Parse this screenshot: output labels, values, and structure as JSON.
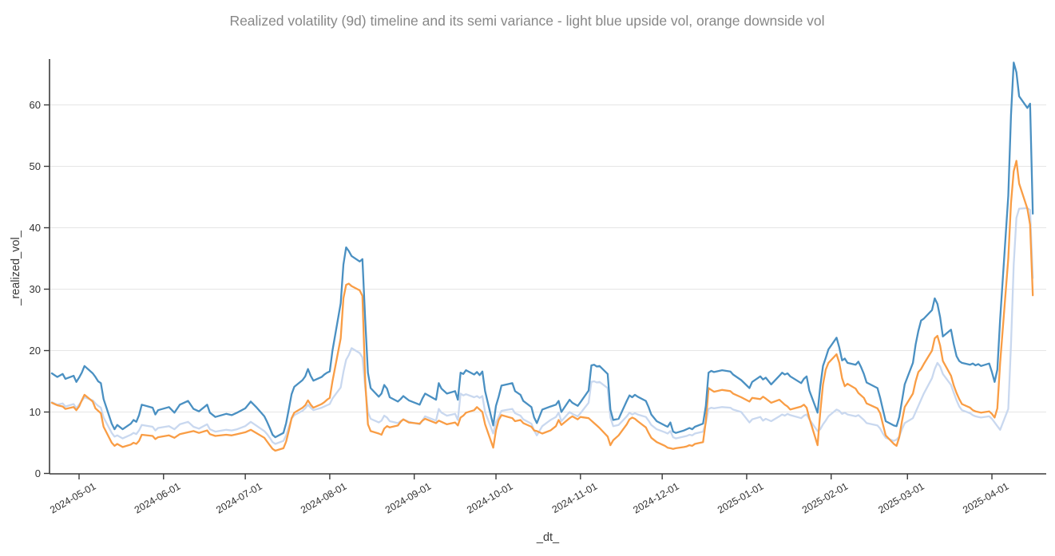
{
  "chart_data": {
    "type": "line",
    "title": "Realized volatility (9d) timeline and its semi variance - light blue upside vol, orange downside vol",
    "xlabel": "_dt_",
    "ylabel": "_realized_vol_",
    "grid": "horizontal-only",
    "legend_position": "none (described in title)",
    "ylim": [
      0,
      67.3
    ],
    "xlim": [
      "2024-04-20",
      "2025-04-21"
    ],
    "y_ticks": [
      0,
      10,
      20,
      30,
      40,
      50,
      60
    ],
    "x_ticks": [
      "2024-05-01",
      "2024-06-01",
      "2024-07-01",
      "2024-08-01",
      "2024-09-01",
      "2024-10-01",
      "2024-11-01",
      "2024-12-01",
      "2025-01-01",
      "2025-02-01",
      "2025-03-01",
      "2025-04-01"
    ],
    "colors": {
      "realized_vol": "#4a90c2",
      "upside_vol": "#c9d8ef",
      "downside_vol": "#f99d45",
      "grid": "#e5e5e5",
      "axis": "#3a3a3a",
      "title": "#878787"
    },
    "series": [
      {
        "name": "upside_vol",
        "label": "light blue upside vol",
        "color": "#c9d8ef",
        "col": 2
      },
      {
        "name": "downside_vol",
        "label": "orange downside vol",
        "color": "#f99d45",
        "col": 3
      },
      {
        "name": "realized_vol",
        "label": "realized vol (9d)",
        "color": "#4a90c2",
        "col": 1
      }
    ],
    "columns": [
      "date",
      "realized_vol",
      "upside_vol",
      "downside_vol"
    ],
    "rows": [
      [
        "2024-04-21",
        16.3,
        11.6,
        11.5
      ],
      [
        "2024-04-23",
        15.7,
        11.2,
        11.1
      ],
      [
        "2024-04-25",
        16.2,
        11.4,
        10.9
      ],
      [
        "2024-04-26",
        15.4,
        10.9,
        10.5
      ],
      [
        "2024-04-29",
        15.9,
        11.3,
        10.8
      ],
      [
        "2024-04-30",
        14.9,
        10.6,
        10.3
      ],
      [
        "2024-05-01",
        15.6,
        11.2,
        10.9
      ],
      [
        "2024-05-02",
        16.4,
        11.8,
        11.9
      ],
      [
        "2024-05-03",
        17.5,
        12.4,
        12.8
      ],
      [
        "2024-05-06",
        16.3,
        11.9,
        11.7
      ],
      [
        "2024-05-07",
        15.7,
        11.4,
        10.6
      ],
      [
        "2024-05-08",
        15.0,
        11.0,
        10.2
      ],
      [
        "2024-05-09",
        14.7,
        10.7,
        9.8
      ],
      [
        "2024-05-10",
        12.1,
        9.1,
        7.6
      ],
      [
        "2024-05-13",
        8.1,
        6.6,
        5.0
      ],
      [
        "2024-05-14",
        7.2,
        6.0,
        4.5
      ],
      [
        "2024-05-15",
        7.9,
        6.2,
        4.8
      ],
      [
        "2024-05-17",
        7.2,
        5.7,
        4.3
      ],
      [
        "2024-05-20",
        8.1,
        6.3,
        4.7
      ],
      [
        "2024-05-21",
        8.7,
        6.6,
        5.0
      ],
      [
        "2024-05-22",
        8.4,
        6.4,
        4.8
      ],
      [
        "2024-05-23",
        9.5,
        7.0,
        5.3
      ],
      [
        "2024-05-24",
        11.2,
        7.9,
        6.3
      ],
      [
        "2024-05-28",
        10.7,
        7.6,
        6.1
      ],
      [
        "2024-05-29",
        9.6,
        7.0,
        5.6
      ],
      [
        "2024-05-30",
        10.3,
        7.4,
        5.9
      ],
      [
        "2024-06-03",
        10.8,
        7.7,
        6.2
      ],
      [
        "2024-06-05",
        9.9,
        7.2,
        5.8
      ],
      [
        "2024-06-07",
        11.2,
        8.0,
        6.4
      ],
      [
        "2024-06-10",
        11.8,
        8.4,
        6.7
      ],
      [
        "2024-06-12",
        10.5,
        7.6,
        6.9
      ],
      [
        "2024-06-14",
        10.1,
        7.3,
        6.6
      ],
      [
        "2024-06-17",
        11.2,
        8.0,
        7.0
      ],
      [
        "2024-06-18",
        9.9,
        7.2,
        6.4
      ],
      [
        "2024-06-20",
        9.2,
        6.8,
        6.1
      ],
      [
        "2024-06-24",
        9.7,
        7.1,
        6.3
      ],
      [
        "2024-06-26",
        9.5,
        7.0,
        6.2
      ],
      [
        "2024-06-28",
        9.9,
        7.2,
        6.4
      ],
      [
        "2024-07-01",
        10.6,
        7.7,
        6.7
      ],
      [
        "2024-07-03",
        11.7,
        8.4,
        7.1
      ],
      [
        "2024-07-05",
        10.8,
        7.8,
        6.6
      ],
      [
        "2024-07-08",
        9.3,
        6.9,
        5.8
      ],
      [
        "2024-07-09",
        8.4,
        6.4,
        5.2
      ],
      [
        "2024-07-10",
        7.4,
        5.8,
        4.6
      ],
      [
        "2024-07-11",
        6.3,
        5.1,
        4.0
      ],
      [
        "2024-07-12",
        5.9,
        4.8,
        3.7
      ],
      [
        "2024-07-15",
        6.6,
        5.3,
        4.1
      ],
      [
        "2024-07-16",
        8.2,
        6.2,
        5.2
      ],
      [
        "2024-07-17",
        10.5,
        7.6,
        7.0
      ],
      [
        "2024-07-18",
        12.9,
        8.9,
        9.0
      ],
      [
        "2024-07-19",
        14.1,
        9.5,
        9.9
      ],
      [
        "2024-07-22",
        15.2,
        10.2,
        10.7
      ],
      [
        "2024-07-23",
        15.8,
        10.6,
        11.1
      ],
      [
        "2024-07-24",
        17.0,
        11.2,
        11.9
      ],
      [
        "2024-07-25",
        15.9,
        10.7,
        11.2
      ],
      [
        "2024-07-26",
        15.1,
        10.3,
        10.7
      ],
      [
        "2024-07-29",
        15.7,
        10.7,
        11.3
      ],
      [
        "2024-07-30",
        16.1,
        10.9,
        11.6
      ],
      [
        "2024-07-31",
        16.4,
        11.1,
        12.0
      ],
      [
        "2024-08-01",
        16.6,
        11.3,
        12.3
      ],
      [
        "2024-08-02",
        20.0,
        12.2,
        15.0
      ],
      [
        "2024-08-05",
        27.7,
        14.0,
        22.0
      ],
      [
        "2024-08-06",
        34.0,
        16.5,
        28.5
      ],
      [
        "2024-08-07",
        36.8,
        18.5,
        30.7
      ],
      [
        "2024-08-08",
        36.2,
        19.3,
        30.9
      ],
      [
        "2024-08-09",
        35.4,
        20.4,
        30.5
      ],
      [
        "2024-08-12",
        34.5,
        19.6,
        29.8
      ],
      [
        "2024-08-13",
        34.9,
        18.9,
        28.9
      ],
      [
        "2024-08-14",
        25.0,
        14.0,
        15.0
      ],
      [
        "2024-08-15",
        16.4,
        10.0,
        8.0
      ],
      [
        "2024-08-16",
        13.9,
        8.9,
        6.9
      ],
      [
        "2024-08-19",
        12.5,
        8.3,
        6.5
      ],
      [
        "2024-08-20",
        13.0,
        8.6,
        6.3
      ],
      [
        "2024-08-21",
        14.4,
        9.4,
        7.3
      ],
      [
        "2024-08-22",
        13.8,
        9.1,
        7.7
      ],
      [
        "2024-08-23",
        12.4,
        8.5,
        7.5
      ],
      [
        "2024-08-26",
        11.7,
        8.2,
        7.8
      ],
      [
        "2024-08-27",
        12.1,
        8.5,
        8.4
      ],
      [
        "2024-08-28",
        12.6,
        8.8,
        8.8
      ],
      [
        "2024-08-30",
        11.9,
        8.4,
        8.3
      ],
      [
        "2024-09-03",
        11.2,
        8.0,
        8.1
      ],
      [
        "2024-09-04",
        12.2,
        8.6,
        8.6
      ],
      [
        "2024-09-05",
        13.0,
        9.3,
        8.9
      ],
      [
        "2024-09-09",
        12.0,
        8.6,
        8.2
      ],
      [
        "2024-09-10",
        14.7,
        10.5,
        8.6
      ],
      [
        "2024-09-11",
        13.8,
        9.9,
        8.4
      ],
      [
        "2024-09-13",
        13.0,
        9.4,
        8.0
      ],
      [
        "2024-09-16",
        13.4,
        9.7,
        8.3
      ],
      [
        "2024-09-17",
        12.0,
        8.7,
        7.8
      ],
      [
        "2024-09-18",
        16.4,
        13.0,
        9.1
      ],
      [
        "2024-09-19",
        16.2,
        12.7,
        9.4
      ],
      [
        "2024-09-20",
        16.8,
        12.9,
        9.9
      ],
      [
        "2024-09-23",
        16.1,
        12.4,
        10.3
      ],
      [
        "2024-09-24",
        16.5,
        12.6,
        10.8
      ],
      [
        "2024-09-25",
        16.0,
        12.3,
        10.4
      ],
      [
        "2024-09-26",
        16.6,
        12.6,
        10.0
      ],
      [
        "2024-09-27",
        13.4,
        10.0,
        8.0
      ],
      [
        "2024-09-30",
        7.8,
        6.5,
        4.2
      ],
      [
        "2024-10-01",
        11.0,
        8.3,
        7.0
      ],
      [
        "2024-10-02",
        12.5,
        9.2,
        8.7
      ],
      [
        "2024-10-03",
        14.3,
        10.2,
        9.5
      ],
      [
        "2024-10-07",
        14.7,
        10.5,
        9.0
      ],
      [
        "2024-10-08",
        13.4,
        9.8,
        8.5
      ],
      [
        "2024-10-10",
        12.8,
        9.4,
        8.7
      ],
      [
        "2024-10-11",
        11.8,
        8.8,
        8.2
      ],
      [
        "2024-10-14",
        10.8,
        8.1,
        7.6
      ],
      [
        "2024-10-15",
        9.1,
        7.0,
        7.0
      ],
      [
        "2024-10-16",
        8.2,
        6.2,
        6.9
      ],
      [
        "2024-10-18",
        10.4,
        7.7,
        6.5
      ],
      [
        "2024-10-21",
        10.9,
        8.7,
        7.0
      ],
      [
        "2024-10-23",
        11.2,
        9.2,
        7.7
      ],
      [
        "2024-10-24",
        11.8,
        9.9,
        8.7
      ],
      [
        "2024-10-25",
        10.0,
        8.5,
        7.9
      ],
      [
        "2024-10-28",
        12.0,
        10.0,
        9.0
      ],
      [
        "2024-10-29",
        11.5,
        9.7,
        9.3
      ],
      [
        "2024-10-31",
        11.0,
        9.3,
        8.8
      ],
      [
        "2024-11-01",
        11.6,
        9.8,
        9.2
      ],
      [
        "2024-11-04",
        13.5,
        11.5,
        9.0
      ],
      [
        "2024-11-05",
        17.6,
        14.9,
        8.6
      ],
      [
        "2024-11-06",
        17.7,
        15.0,
        8.2
      ],
      [
        "2024-11-07",
        17.4,
        14.8,
        7.8
      ],
      [
        "2024-11-08",
        17.5,
        14.9,
        7.4
      ],
      [
        "2024-11-11",
        16.2,
        13.9,
        6.0
      ],
      [
        "2024-11-12",
        10.4,
        9.1,
        4.6
      ],
      [
        "2024-11-13",
        8.7,
        7.7,
        5.4
      ],
      [
        "2024-11-15",
        8.9,
        7.9,
        6.2
      ],
      [
        "2024-11-18",
        11.8,
        9.3,
        8.0
      ],
      [
        "2024-11-19",
        12.7,
        9.9,
        8.8
      ],
      [
        "2024-11-20",
        12.4,
        9.6,
        9.1
      ],
      [
        "2024-11-21",
        12.8,
        9.8,
        8.9
      ],
      [
        "2024-11-22",
        12.5,
        9.6,
        8.5
      ],
      [
        "2024-11-25",
        11.8,
        9.2,
        7.5
      ],
      [
        "2024-11-26",
        10.8,
        8.6,
        6.6
      ],
      [
        "2024-11-27",
        9.6,
        7.9,
        5.8
      ],
      [
        "2024-11-29",
        8.5,
        7.2,
        5.1
      ],
      [
        "2024-12-02",
        7.8,
        6.7,
        4.5
      ],
      [
        "2024-12-03",
        7.6,
        6.5,
        4.2
      ],
      [
        "2024-12-04",
        8.3,
        6.9,
        4.1
      ],
      [
        "2024-12-05",
        6.8,
        5.9,
        4.0
      ],
      [
        "2024-12-06",
        6.6,
        5.7,
        4.1
      ],
      [
        "2024-12-09",
        7.0,
        6.0,
        4.3
      ],
      [
        "2024-12-10",
        7.2,
        6.1,
        4.4
      ],
      [
        "2024-12-11",
        7.4,
        6.3,
        4.6
      ],
      [
        "2024-12-12",
        7.2,
        6.2,
        4.5
      ],
      [
        "2024-12-13",
        7.6,
        6.5,
        4.8
      ],
      [
        "2024-12-16",
        8.1,
        6.8,
        5.1
      ],
      [
        "2024-12-17",
        11.0,
        8.2,
        8.5
      ],
      [
        "2024-12-18",
        16.4,
        10.5,
        13.9
      ],
      [
        "2024-12-19",
        16.7,
        10.7,
        13.6
      ],
      [
        "2024-12-20",
        16.5,
        10.6,
        13.3
      ],
      [
        "2024-12-23",
        16.8,
        10.8,
        13.6
      ],
      [
        "2024-12-26",
        16.6,
        10.7,
        13.4
      ],
      [
        "2024-12-27",
        16.1,
        10.4,
        13.0
      ],
      [
        "2024-12-30",
        15.2,
        10.0,
        12.4
      ],
      [
        "2025-01-02",
        13.9,
        8.3,
        11.7
      ],
      [
        "2025-01-03",
        14.9,
        8.8,
        12.3
      ],
      [
        "2025-01-06",
        15.8,
        9.2,
        12.1
      ],
      [
        "2025-01-07",
        15.3,
        8.6,
        12.5
      ],
      [
        "2025-01-08",
        15.6,
        8.9,
        12.2
      ],
      [
        "2025-01-10",
        14.5,
        8.5,
        11.5
      ],
      [
        "2025-01-13",
        15.9,
        9.3,
        12.0
      ],
      [
        "2025-01-14",
        16.4,
        9.6,
        11.6
      ],
      [
        "2025-01-15",
        16.1,
        9.4,
        11.2
      ],
      [
        "2025-01-16",
        16.3,
        9.7,
        10.9
      ],
      [
        "2025-01-17",
        15.8,
        9.5,
        10.4
      ],
      [
        "2025-01-21",
        14.7,
        9.0,
        10.9
      ],
      [
        "2025-01-22",
        15.4,
        9.4,
        11.2
      ],
      [
        "2025-01-23",
        15.8,
        9.6,
        10.7
      ],
      [
        "2025-01-24",
        13.5,
        8.8,
        9.0
      ],
      [
        "2025-01-27",
        9.9,
        6.9,
        4.6
      ],
      [
        "2025-01-28",
        14.2,
        7.2,
        10.0
      ],
      [
        "2025-01-29",
        17.5,
        8.0,
        14.5
      ],
      [
        "2025-01-30",
        18.8,
        8.6,
        16.9
      ],
      [
        "2025-01-31",
        20.2,
        9.3,
        18.0
      ],
      [
        "2025-02-03",
        22.1,
        10.4,
        19.4
      ],
      [
        "2025-02-04",
        20.5,
        10.2,
        18.0
      ],
      [
        "2025-02-05",
        18.4,
        9.7,
        15.5
      ],
      [
        "2025-02-06",
        18.7,
        9.9,
        14.2
      ],
      [
        "2025-02-07",
        18.0,
        9.6,
        14.6
      ],
      [
        "2025-02-10",
        17.7,
        9.3,
        13.8
      ],
      [
        "2025-02-11",
        18.2,
        9.5,
        13.1
      ],
      [
        "2025-02-12",
        17.3,
        9.1,
        12.7
      ],
      [
        "2025-02-13",
        16.2,
        8.7,
        12.3
      ],
      [
        "2025-02-14",
        14.8,
        8.2,
        11.4
      ],
      [
        "2025-02-18",
        13.9,
        7.8,
        10.6
      ],
      [
        "2025-02-19",
        12.3,
        7.3,
        9.8
      ],
      [
        "2025-02-20",
        10.4,
        6.5,
        8.0
      ],
      [
        "2025-02-21",
        8.5,
        5.8,
        6.2
      ],
      [
        "2025-02-24",
        7.8,
        5.3,
        4.8
      ],
      [
        "2025-02-25",
        7.7,
        5.5,
        4.5
      ],
      [
        "2025-02-26",
        9.2,
        6.0,
        5.9
      ],
      [
        "2025-02-27",
        11.8,
        7.2,
        8.5
      ],
      [
        "2025-02-28",
        14.5,
        8.2,
        10.8
      ],
      [
        "2025-03-03",
        18.0,
        9.0,
        13.0
      ],
      [
        "2025-03-04",
        21.0,
        10.0,
        15.0
      ],
      [
        "2025-03-05",
        23.2,
        11.0,
        16.5
      ],
      [
        "2025-03-06",
        24.9,
        12.0,
        17.0
      ],
      [
        "2025-03-07",
        25.2,
        13.0,
        17.8
      ],
      [
        "2025-03-10",
        26.6,
        15.5,
        20.0
      ],
      [
        "2025-03-11",
        28.5,
        17.0,
        22.0
      ],
      [
        "2025-03-12",
        27.6,
        18.0,
        22.4
      ],
      [
        "2025-03-13",
        25.4,
        17.4,
        20.8
      ],
      [
        "2025-03-14",
        22.3,
        16.2,
        18.3
      ],
      [
        "2025-03-17",
        23.4,
        14.4,
        15.9
      ],
      [
        "2025-03-18",
        21.0,
        13.1,
        14.3
      ],
      [
        "2025-03-19",
        19.1,
        11.9,
        13.1
      ],
      [
        "2025-03-20",
        18.3,
        10.9,
        12.1
      ],
      [
        "2025-03-21",
        18.0,
        10.3,
        11.3
      ],
      [
        "2025-03-24",
        17.7,
        9.8,
        10.7
      ],
      [
        "2025-03-25",
        17.9,
        9.5,
        10.3
      ],
      [
        "2025-03-26",
        17.6,
        9.3,
        10.1
      ],
      [
        "2025-03-27",
        17.8,
        9.2,
        10.0
      ],
      [
        "2025-03-28",
        17.5,
        9.1,
        9.9
      ],
      [
        "2025-03-31",
        17.9,
        9.3,
        10.1
      ],
      [
        "2025-04-01",
        16.5,
        8.9,
        9.7
      ],
      [
        "2025-04-02",
        14.9,
        8.3,
        9.1
      ],
      [
        "2025-04-03",
        16.9,
        7.7,
        10.6
      ],
      [
        "2025-04-04",
        25.1,
        7.1,
        18.0
      ],
      [
        "2025-04-07",
        45.2,
        10.5,
        35.0
      ],
      [
        "2025-04-08",
        58.3,
        21.0,
        44.0
      ],
      [
        "2025-04-09",
        66.9,
        34.0,
        49.2
      ],
      [
        "2025-04-10",
        65.3,
        41.6,
        50.9
      ],
      [
        "2025-04-11",
        61.4,
        43.1,
        47.2
      ],
      [
        "2025-04-14",
        59.5,
        43.2,
        43.1
      ],
      [
        "2025-04-15",
        60.2,
        42.9,
        40.5
      ],
      [
        "2025-04-16",
        42.3,
        31.8,
        29.0
      ]
    ]
  }
}
